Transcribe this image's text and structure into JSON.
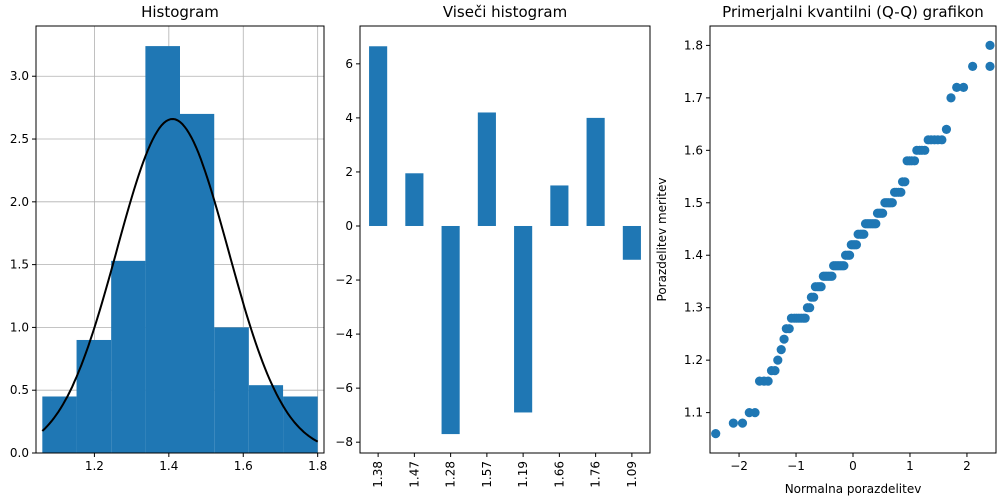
{
  "chart_data": [
    {
      "type": "bar",
      "title": "Histogram",
      "xlim": [
        1.043,
        1.817
      ],
      "ylim": [
        0,
        3.4
      ],
      "grid": true,
      "xticks": [
        "1.2",
        "1.4",
        "1.6",
        "1.8"
      ],
      "xtick_values": [
        1.2,
        1.4,
        1.6,
        1.8
      ],
      "yticks": [
        "0.0",
        "0.5",
        "1.0",
        "1.5",
        "2.0",
        "2.5",
        "3.0"
      ],
      "ytick_values": [
        0,
        0.5,
        1.0,
        1.5,
        2.0,
        2.5,
        3.0
      ],
      "bins": [
        {
          "x0": 1.06,
          "x1": 1.152,
          "value": 0.45
        },
        {
          "x0": 1.152,
          "x1": 1.245,
          "value": 0.9
        },
        {
          "x0": 1.245,
          "x1": 1.337,
          "value": 1.53
        },
        {
          "x0": 1.337,
          "x1": 1.43,
          "value": 3.24
        },
        {
          "x0": 1.43,
          "x1": 1.522,
          "value": 2.7
        },
        {
          "x0": 1.522,
          "x1": 1.615,
          "value": 1.0
        },
        {
          "x0": 1.615,
          "x1": 1.707,
          "value": 0.54
        },
        {
          "x0": 1.707,
          "x1": 1.8,
          "value": 0.45
        }
      ],
      "normal_curve": {
        "mean": 1.41,
        "std": 0.15,
        "x_range": [
          1.06,
          1.8
        ]
      }
    },
    {
      "type": "bar",
      "title": "Viseči histogram",
      "ylim": [
        -8.4,
        7.4
      ],
      "grid": false,
      "categories": [
        "1.38",
        "1.47",
        "1.28",
        "1.57",
        "1.19",
        "1.66",
        "1.76",
        "1.09"
      ],
      "values": [
        6.65,
        1.95,
        -7.7,
        4.2,
        -6.9,
        1.5,
        4.0,
        -1.25
      ],
      "yticks": [
        "−8",
        "−6",
        "−4",
        "−2",
        "0",
        "2",
        "4",
        "6"
      ],
      "ytick_values": [
        -8,
        -6,
        -4,
        -2,
        0,
        2,
        4,
        6
      ]
    },
    {
      "type": "scatter",
      "title": "Primerjalni kvantilni (Q-Q) grafikon",
      "xlabel": "Normalna porazdelitev",
      "ylabel": "Porazdelitev meritev",
      "xlim": [
        -2.51,
        2.51
      ],
      "ylim": [
        1.023,
        1.837
      ],
      "grid": false,
      "xticks": [
        "−2",
        "−1",
        "0",
        "1",
        "2"
      ],
      "xtick_values": [
        -2,
        -1,
        0,
        1,
        2
      ],
      "yticks": [
        "1.1",
        "1.2",
        "1.3",
        "1.4",
        "1.5",
        "1.6",
        "1.7",
        "1.8"
      ],
      "ytick_values": [
        1.1,
        1.2,
        1.3,
        1.4,
        1.5,
        1.6,
        1.7,
        1.8
      ],
      "points": [
        [
          -2.41,
          1.06
        ],
        [
          -2.1,
          1.08
        ],
        [
          -1.94,
          1.08
        ],
        [
          -1.82,
          1.1
        ],
        [
          -1.72,
          1.1
        ],
        [
          -1.64,
          1.16
        ],
        [
          -1.56,
          1.16
        ],
        [
          -1.49,
          1.16
        ],
        [
          -1.43,
          1.18
        ],
        [
          -1.37,
          1.18
        ],
        [
          -1.32,
          1.2
        ],
        [
          -1.26,
          1.22
        ],
        [
          -1.21,
          1.24
        ],
        [
          -1.17,
          1.26
        ],
        [
          -1.12,
          1.26
        ],
        [
          -1.08,
          1.28
        ],
        [
          -1.03,
          1.28
        ],
        [
          -0.99,
          1.28
        ],
        [
          -0.95,
          1.28
        ],
        [
          -0.91,
          1.28
        ],
        [
          -0.87,
          1.28
        ],
        [
          -0.84,
          1.28
        ],
        [
          -0.8,
          1.3
        ],
        [
          -0.76,
          1.3
        ],
        [
          -0.73,
          1.32
        ],
        [
          -0.69,
          1.32
        ],
        [
          -0.66,
          1.34
        ],
        [
          -0.62,
          1.34
        ],
        [
          -0.59,
          1.34
        ],
        [
          -0.56,
          1.34
        ],
        [
          -0.52,
          1.36
        ],
        [
          -0.49,
          1.36
        ],
        [
          -0.46,
          1.36
        ],
        [
          -0.43,
          1.36
        ],
        [
          -0.4,
          1.36
        ],
        [
          -0.37,
          1.36
        ],
        [
          -0.34,
          1.38
        ],
        [
          -0.31,
          1.38
        ],
        [
          -0.28,
          1.38
        ],
        [
          -0.25,
          1.38
        ],
        [
          -0.22,
          1.38
        ],
        [
          -0.19,
          1.38
        ],
        [
          -0.16,
          1.38
        ],
        [
          -0.13,
          1.4
        ],
        [
          -0.09,
          1.4
        ],
        [
          -0.06,
          1.4
        ],
        [
          -0.03,
          1.42
        ],
        [
          0.0,
          1.42
        ],
        [
          0.03,
          1.42
        ],
        [
          0.06,
          1.42
        ],
        [
          0.09,
          1.44
        ],
        [
          0.13,
          1.44
        ],
        [
          0.16,
          1.44
        ],
        [
          0.19,
          1.44
        ],
        [
          0.22,
          1.46
        ],
        [
          0.25,
          1.46
        ],
        [
          0.28,
          1.46
        ],
        [
          0.31,
          1.46
        ],
        [
          0.34,
          1.46
        ],
        [
          0.37,
          1.46
        ],
        [
          0.4,
          1.46
        ],
        [
          0.43,
          1.48
        ],
        [
          0.46,
          1.48
        ],
        [
          0.49,
          1.48
        ],
        [
          0.52,
          1.48
        ],
        [
          0.56,
          1.5
        ],
        [
          0.59,
          1.5
        ],
        [
          0.62,
          1.5
        ],
        [
          0.66,
          1.5
        ],
        [
          0.69,
          1.5
        ],
        [
          0.73,
          1.52
        ],
        [
          0.76,
          1.52
        ],
        [
          0.8,
          1.52
        ],
        [
          0.84,
          1.52
        ],
        [
          0.87,
          1.54
        ],
        [
          0.91,
          1.54
        ],
        [
          0.95,
          1.58
        ],
        [
          0.99,
          1.58
        ],
        [
          1.03,
          1.58
        ],
        [
          1.08,
          1.58
        ],
        [
          1.12,
          1.6
        ],
        [
          1.17,
          1.6
        ],
        [
          1.21,
          1.6
        ],
        [
          1.26,
          1.6
        ],
        [
          1.32,
          1.62
        ],
        [
          1.37,
          1.62
        ],
        [
          1.43,
          1.62
        ],
        [
          1.49,
          1.62
        ],
        [
          1.56,
          1.62
        ],
        [
          1.64,
          1.64
        ],
        [
          1.72,
          1.7
        ],
        [
          1.82,
          1.72
        ],
        [
          1.94,
          1.72
        ],
        [
          2.1,
          1.76
        ],
        [
          2.41,
          1.76
        ],
        [
          2.65,
          1.8
        ]
      ]
    }
  ],
  "colors": {
    "bar": "#1f77b4",
    "curve": "#000000",
    "grid": "#b0b0b0",
    "axis": "#000000"
  }
}
